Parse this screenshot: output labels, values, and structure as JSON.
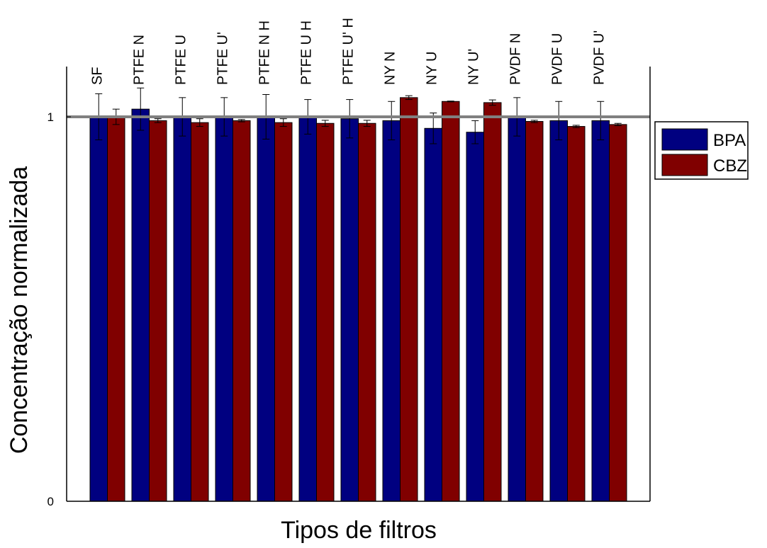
{
  "chart_data": {
    "type": "bar",
    "title": "",
    "xlabel": "Tipos de filtros",
    "ylabel": "Concentração normalizada",
    "ylim": [
      0,
      1.1
    ],
    "yticks": [
      {
        "value": 0,
        "label": "0"
      },
      {
        "value": 1,
        "label": "1"
      }
    ],
    "grid": false,
    "legend_position": "outside-right",
    "reference_line": {
      "value": 1,
      "color": "#808080"
    },
    "categories": [
      "SF",
      "PTFE N",
      "PTFE U",
      "PTFE U'",
      "PTFE N H",
      "PTFE U H",
      "PTFE U' H",
      "NY N",
      "NY U",
      "NY U'",
      "PVDF N",
      "PVDF U",
      "PVDF U'"
    ],
    "series": [
      {
        "name": "BPA",
        "color": "#000080",
        "values": [
          1.0,
          1.02,
          1.0,
          1.0,
          1.0,
          1.0,
          0.995,
          0.99,
          0.97,
          0.96,
          1.0,
          0.99,
          0.99
        ],
        "errors": [
          0.06,
          0.055,
          0.05,
          0.05,
          0.058,
          0.045,
          0.05,
          0.05,
          0.04,
          0.03,
          0.05,
          0.05,
          0.05
        ]
      },
      {
        "name": "CBZ",
        "color": "#800000",
        "values": [
          1.0,
          0.99,
          0.985,
          0.99,
          0.985,
          0.983,
          0.983,
          1.05,
          1.04,
          1.037,
          0.988,
          0.975,
          0.98
        ],
        "errors": [
          0.02,
          0.005,
          0.01,
          0.003,
          0.01,
          0.008,
          0.008,
          0.005,
          0.001,
          0.007,
          0.003,
          0.003,
          0.003
        ]
      }
    ]
  }
}
